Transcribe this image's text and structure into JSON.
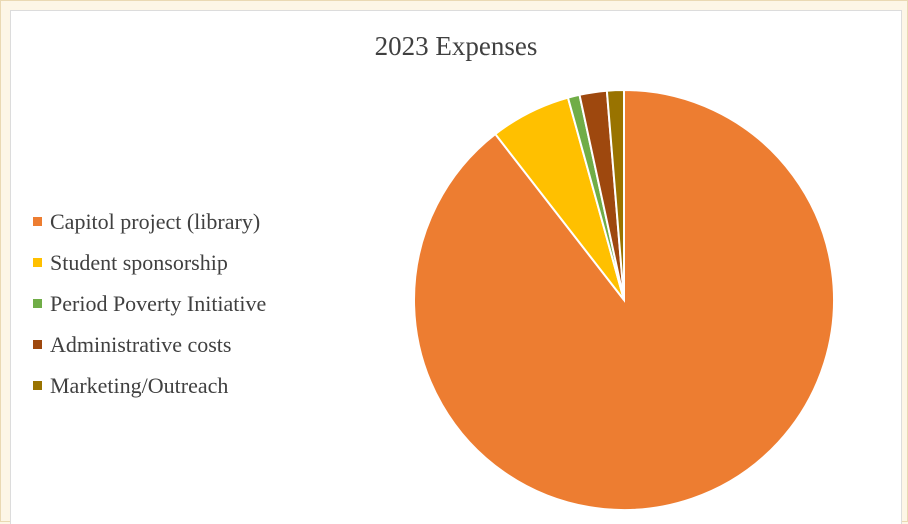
{
  "chart_data": {
    "type": "pie",
    "title": "2023 Expenses",
    "legend_position": "left",
    "series": [
      {
        "name": "",
        "slices": [
          {
            "label": "Capitol project (library)",
            "value": 89.5,
            "color": "#ed7d31"
          },
          {
            "label": "Student sponsorship",
            "value": 6.2,
            "color": "#ffc000"
          },
          {
            "label": "Period Poverty Initiative",
            "value": 0.9,
            "color": "#70ad47"
          },
          {
            "label": "Administrative costs",
            "value": 2.1,
            "color": "#9e480e"
          },
          {
            "label": "Marketing/Outreach",
            "value": 1.3,
            "color": "#997300"
          }
        ]
      }
    ]
  }
}
